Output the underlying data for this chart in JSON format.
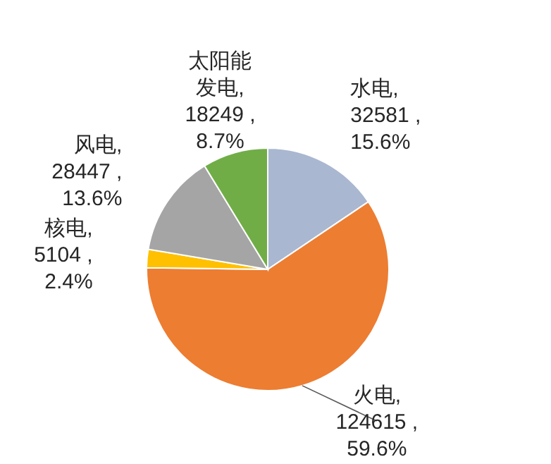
{
  "chart_data": {
    "type": "pie",
    "categories": [
      "水电",
      "火电",
      "核电",
      "风电",
      "太阳能发电"
    ],
    "values": [
      32581,
      124615,
      5104,
      28447,
      18249
    ],
    "value_labels": [
      ", 32581 , 15.6%",
      ", 124615 , 59.6%",
      ", 5104 , 2.4%",
      ", 28447 , 13.6%",
      ", 18249 , 8.7%"
    ],
    "colors": [
      "#a9b7d0",
      "#ed7d31",
      "#ffc000",
      "#a5a5a5",
      "#70ad47"
    ],
    "data_labels": true
  }
}
